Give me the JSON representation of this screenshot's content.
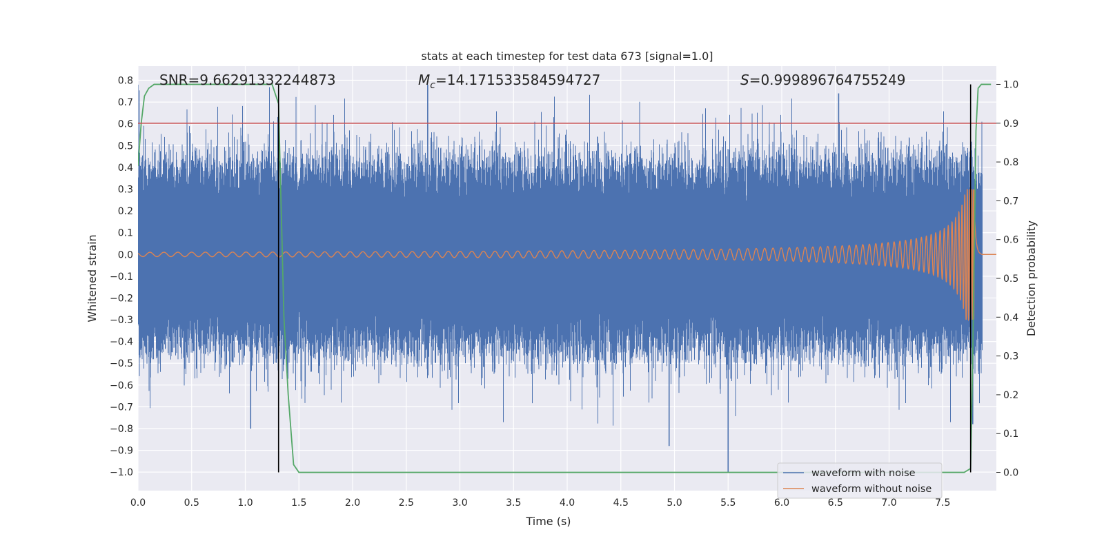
{
  "chart_data": {
    "type": "line",
    "title": "stats at each timestep for test data 673 [signal=1.0]",
    "xlabel": "Time (s)",
    "ylabel": "Whitened strain",
    "y2label": "Detection probability",
    "xlim": [
      0.0,
      8.0
    ],
    "ylim": [
      -1.085,
      0.865
    ],
    "y2lim": [
      -0.047,
      1.047
    ],
    "xticks": [
      "0.0",
      "0.5",
      "1.0",
      "1.5",
      "2.0",
      "2.5",
      "3.0",
      "3.5",
      "4.0",
      "4.5",
      "5.0",
      "5.5",
      "6.0",
      "6.5",
      "7.0",
      "7.5"
    ],
    "yticks": [
      "0.8",
      "0.7",
      "0.6",
      "0.5",
      "0.4",
      "0.3",
      "0.2",
      "0.1",
      "0.0",
      "−0.1",
      "−0.2",
      "−0.3",
      "−0.4",
      "−0.5",
      "−0.6",
      "−0.7",
      "−0.8",
      "−0.9",
      "−1.0"
    ],
    "y2ticks": [
      "1.0",
      "0.9",
      "0.8",
      "0.7",
      "0.6",
      "0.5",
      "0.4",
      "0.3",
      "0.2",
      "0.1",
      "0.0"
    ],
    "grid": true,
    "legend_position": "bottom-right",
    "annotations": {
      "snr": "SNR=9.66291332244873",
      "mc_symbol": "M",
      "mc_sub": "c",
      "mc_value": "=14.171533584594727",
      "s_symbol": "S",
      "s_value": "=0.999896764755249"
    },
    "threshold_line": {
      "y2": 0.9,
      "color": "#c44e52"
    },
    "vertical_lines": [
      1.31,
      7.76
    ],
    "series": [
      {
        "name": "waveform with noise",
        "color": "#4c72b0",
        "description_stats": {
          "envelope_upper": 0.42,
          "envelope_lower": -0.45,
          "max": 0.78,
          "min": -1.0
        }
      },
      {
        "name": "waveform without noise",
        "color": "#dd8452",
        "chirp": {
          "start_amplitude": 0.01,
          "merger_time": 7.8,
          "peak_amplitude": 0.3,
          "end_time": 7.86
        }
      },
      {
        "name": "detection probability",
        "axis": "y2",
        "color": "#55a868",
        "x": [
          0.0,
          0.03,
          0.06,
          0.1,
          0.15,
          0.3,
          0.6,
          1.0,
          1.25,
          1.31,
          1.36,
          1.4,
          1.45,
          1.5,
          1.6,
          2.0,
          3.0,
          4.0,
          5.0,
          5.5,
          6.0,
          7.0,
          7.5,
          7.7,
          7.76,
          7.78,
          7.81,
          7.83,
          7.86,
          7.9,
          7.95
        ],
        "y": [
          0.79,
          0.9,
          0.97,
          0.99,
          1.0,
          1.0,
          1.0,
          1.0,
          1.0,
          0.95,
          0.4,
          0.2,
          0.02,
          0.0,
          0.0,
          0.0,
          0.0,
          0.0,
          0.0,
          0.0,
          0.0,
          0.0,
          0.0,
          0.0,
          0.01,
          0.3,
          0.88,
          0.99,
          1.0,
          1.0,
          1.0
        ]
      }
    ]
  }
}
